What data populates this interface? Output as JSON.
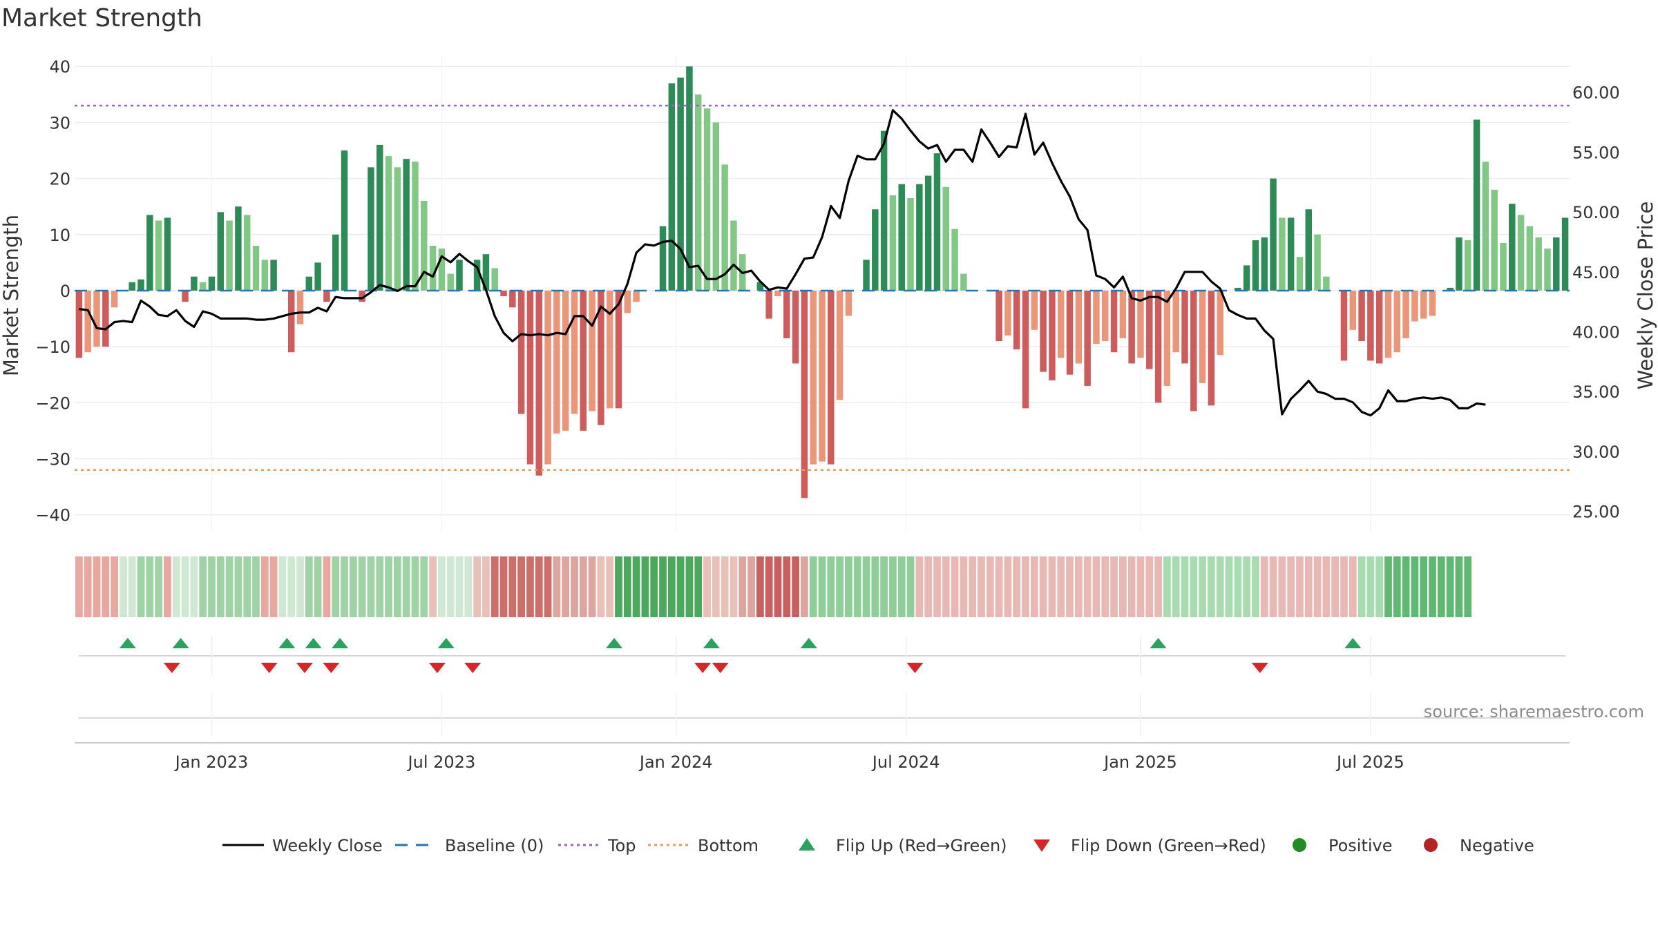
{
  "chart_data": {
    "type": "bar",
    "title": "Market Strength",
    "ylabel_left": "Market Strength",
    "ylabel_right": "Weekly Close Price",
    "source": "source: sharemaestro.com",
    "y_left": {
      "min": -43,
      "max": 42,
      "ticks": [
        -40,
        -30,
        -20,
        -10,
        0,
        10,
        20,
        30,
        40
      ]
    },
    "y_right": {
      "min": 23.3,
      "max": 63.1,
      "ticks": [
        "25.00",
        "30.00",
        "35.00",
        "40.00",
        "45.00",
        "50.00",
        "55.00",
        "60.00"
      ]
    },
    "reference_lines": {
      "baseline": 0,
      "top": 33,
      "bottom": -32
    },
    "x_tick_labels": [
      {
        "label": "Jan 2023",
        "week": 15
      },
      {
        "label": "Jul 2023",
        "week": 41
      },
      {
        "label": "Jan 2024",
        "week": 67.5
      },
      {
        "label": "Jul 2024",
        "week": 93.5
      },
      {
        "label": "Jan 2025",
        "week": 120
      },
      {
        "label": "Jul 2025",
        "week": 146
      }
    ],
    "strength": [
      -12,
      -11,
      -10,
      -10,
      -3,
      0,
      1.5,
      2,
      13.5,
      12.5,
      13,
      0,
      -2,
      2.5,
      1.5,
      2.5,
      14,
      12.5,
      15,
      13.5,
      8,
      5.5,
      5.5,
      0,
      -11,
      -6,
      2.5,
      5,
      -2,
      10,
      25,
      0,
      -2,
      22,
      26,
      24,
      22,
      23.5,
      23,
      16,
      8,
      7.5,
      3,
      5.5,
      0,
      5.5,
      6.5,
      4,
      -1,
      -3,
      -22,
      -31,
      -33,
      -31,
      -25.5,
      -25,
      -22,
      -25,
      -21.5,
      -24,
      -21,
      -21,
      -4,
      -2,
      0,
      0,
      11.5,
      37,
      38,
      40,
      35,
      32.5,
      30,
      22.5,
      12.5,
      6.5,
      0,
      1.5,
      -5,
      -1,
      -8.5,
      -13,
      -37,
      -31,
      -30.5,
      -31,
      -19.5,
      -4.5,
      0,
      5.5,
      14.5,
      28.5,
      17,
      19,
      16.5,
      19,
      20.5,
      24.5,
      18.5,
      11,
      3,
      0,
      0,
      0,
      -9,
      -8,
      -10.5,
      -21,
      -7,
      -14.5,
      -16,
      -12,
      -15,
      -13,
      -17,
      -9.5,
      -9,
      -11,
      -8.5,
      -13,
      -12,
      -14,
      -20,
      -17,
      -11,
      -13,
      -21.5,
      -16.5,
      -20.5,
      -11.5,
      0,
      0.5,
      4.5,
      9,
      9.5,
      20,
      13,
      13,
      6,
      14.5,
      10,
      2.5,
      0,
      -12.5,
      -7,
      -9,
      -12.5,
      -13,
      -12,
      -11,
      -8.5,
      -5.5,
      -5,
      -4.5,
      0,
      0.5,
      9.5,
      9,
      30.5,
      23,
      18,
      8.5,
      15.5,
      13.5,
      11.5,
      9.5,
      7.5,
      9.5,
      13
    ],
    "weekly_close": [
      41.9,
      41.8,
      40.3,
      40.2,
      40.8,
      40.9,
      40.8,
      42.6,
      42.1,
      41.4,
      41.3,
      41.8,
      40.9,
      40.4,
      41.7,
      41.5,
      41.1,
      41.1,
      41.1,
      41.1,
      41.0,
      41.0,
      41.1,
      41.3,
      41.5,
      41.6,
      41.6,
      42.0,
      41.7,
      42.9,
      42.8,
      42.8,
      42.8,
      43.3,
      43.9,
      43.7,
      43.4,
      43.8,
      43.8,
      45.0,
      44.6,
      46.3,
      45.8,
      46.5,
      45.9,
      45.4,
      43.5,
      41.3,
      39.9,
      39.2,
      39.8,
      39.7,
      39.8,
      39.7,
      39.9,
      39.8,
      41.3,
      41.3,
      40.5,
      42.1,
      41.5,
      42.3,
      44.0,
      46.6,
      47.3,
      47.2,
      47.5,
      47.6,
      46.9,
      45.4,
      45.5,
      44.4,
      44.4,
      44.8,
      45.6,
      44.9,
      45.1,
      44.2,
      43.5,
      43.7,
      43.6,
      44.8,
      46.1,
      46.2,
      47.9,
      50.5,
      49.5,
      52.6,
      54.7,
      54.4,
      54.4,
      55.7,
      58.5,
      57.8,
      56.8,
      55.9,
      55.3,
      55.6,
      54.2,
      55.2,
      55.2,
      54.2,
      56.9,
      55.8,
      54.6,
      55.5,
      55.4,
      58.2,
      54.8,
      55.8,
      54.1,
      52.6,
      51.3,
      49.4,
      48.5,
      44.7,
      44.4,
      43.7,
      44.6,
      42.8,
      42.6,
      42.9,
      42.9,
      42.5,
      43.6,
      45.0,
      45.0,
      45.0,
      44.2,
      43.6,
      41.8,
      41.4,
      41.1,
      41.1,
      40.1,
      39.4,
      33.1,
      34.4,
      35.1,
      35.9,
      35.0,
      34.8,
      34.4,
      34.4,
      34.1,
      33.3,
      33.0,
      33.6,
      35.1,
      34.2,
      34.2,
      34.4,
      34.5,
      34.4,
      34.5,
      34.3,
      33.6,
      33.6,
      34.0,
      33.9
    ],
    "regime_strip": [
      {
        "c": "#e8a8a0",
        "n": 5
      },
      {
        "c": "#cfe8d3",
        "n": 2
      },
      {
        "c": "#9fd3a6",
        "n": 3
      },
      {
        "c": "#e8a8a0",
        "n": 1
      },
      {
        "c": "#cfe8d3",
        "n": 3
      },
      {
        "c": "#9fd3a6",
        "n": 7
      },
      {
        "c": "#e8a8a0",
        "n": 2
      },
      {
        "c": "#cfe8d3",
        "n": 3
      },
      {
        "c": "#9fd3a6",
        "n": 2
      },
      {
        "c": "#e8a8a0",
        "n": 1
      },
      {
        "c": "#9fd3a6",
        "n": 11
      },
      {
        "c": "#e8c0b8",
        "n": 1
      },
      {
        "c": "#cfe8d3",
        "n": 4
      },
      {
        "c": "#e8c0b8",
        "n": 2
      },
      {
        "c": "#cc6e6a",
        "n": 7
      },
      {
        "c": "#dca5a0",
        "n": 5
      },
      {
        "c": "#e8c0b8",
        "n": 2
      },
      {
        "c": "#4ba85c",
        "n": 10
      },
      {
        "c": "#e8c0b8",
        "n": 4
      },
      {
        "c": "#dca5a0",
        "n": 2
      },
      {
        "c": "#c96060",
        "n": 5
      },
      {
        "c": "#dca5a0",
        "n": 1
      },
      {
        "c": "#8fce98",
        "n": 12
      },
      {
        "c": "#e8b8b4",
        "n": 28
      },
      {
        "c": "#a8dbb0",
        "n": 11
      },
      {
        "c": "#e8b8b4",
        "n": 11
      },
      {
        "c": "#a8dbb0",
        "n": 3
      },
      {
        "c": "#60b872",
        "n": 10
      }
    ],
    "flip_up_weeks": [
      5.5,
      11.5,
      23.5,
      26.5,
      29.5,
      41.5,
      60.5,
      71.5,
      82.5,
      122,
      144
    ],
    "flip_down_weeks": [
      10.5,
      21.5,
      25.5,
      28.5,
      40.5,
      44.5,
      70.5,
      72.5,
      94.5,
      133.5
    ],
    "legend": [
      {
        "label": "Weekly Close",
        "kind": "line",
        "color": "#000000"
      },
      {
        "label": "Baseline (0)",
        "kind": "dash",
        "color": "#1f77b4"
      },
      {
        "label": "Top",
        "kind": "dot",
        "color": "#9467bd"
      },
      {
        "label": "Bottom",
        "kind": "dot",
        "color": "#ef9a55"
      },
      {
        "label": "Flip Up (Red→Green)",
        "kind": "tri-up",
        "color": "#2ca25f"
      },
      {
        "label": "Flip Down (Green→Red)",
        "kind": "tri-down",
        "color": "#d62728"
      },
      {
        "label": "Positive",
        "kind": "circle",
        "color": "#228b22"
      },
      {
        "label": "Negative",
        "kind": "circle",
        "color": "#b22222"
      }
    ],
    "colors": {
      "bar_strong_positive": "#2e8b57",
      "bar_weak_positive": "#82c785",
      "bar_strong_negative": "#cd5c5c",
      "bar_weak_negative": "#e9967a",
      "baseline": "#1f77b4",
      "top": "#9467bd",
      "bottom": "#ef9a55",
      "price_line": "#000000",
      "flip_up": "#2ca25f",
      "flip_down": "#d62728"
    },
    "grid": true,
    "legend_position": "bottom"
  }
}
